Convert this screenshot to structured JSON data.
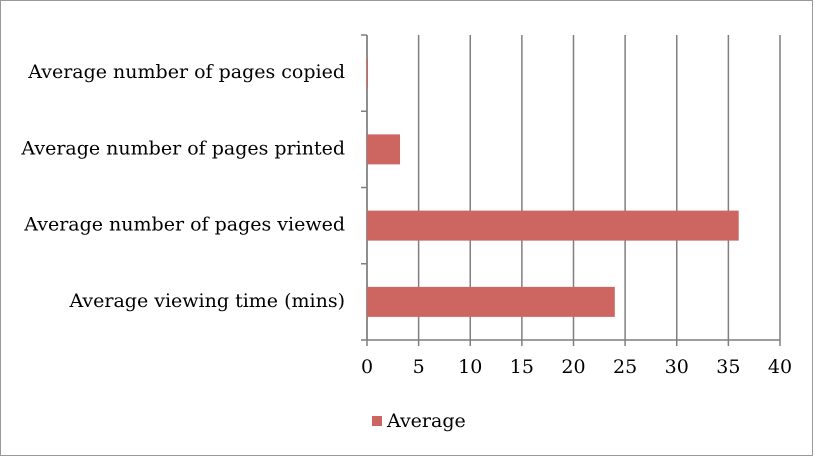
{
  "chart_data": {
    "type": "bar",
    "orientation": "horizontal",
    "categories": [
      "Average number of pages copied",
      "Average number of pages printed",
      "Average number of pages viewed",
      "Average viewing time  (mins)"
    ],
    "series": [
      {
        "name": "Average",
        "color": "#cd6660",
        "values": [
          0.1,
          3.2,
          36.0,
          24.0
        ]
      }
    ],
    "xlim": [
      0,
      40
    ],
    "xticks": [
      0,
      5,
      10,
      15,
      20,
      25,
      30,
      35,
      40
    ],
    "grid": true,
    "legend": "bottom"
  }
}
